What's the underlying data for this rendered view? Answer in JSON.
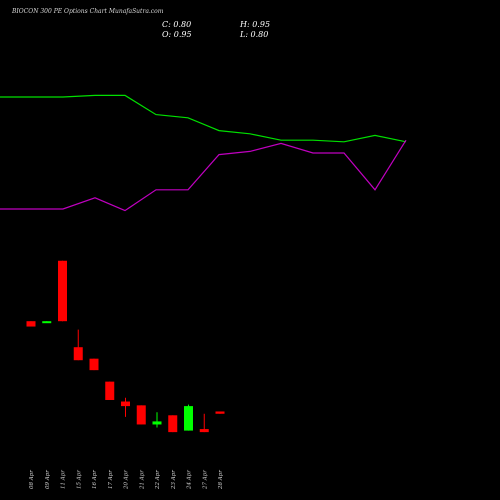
{
  "title": "BIOCON 300 PE Options Chart MunafaSutra.com",
  "ohlc": {
    "close_label": "C: 0.80",
    "high_label": "H: 0.95",
    "open_label": "O: 0.95",
    "low_label": "L: 0.80"
  },
  "colors": {
    "background": "#000000",
    "up": "#00ff00",
    "down": "#ff0000",
    "line_green": "#00e000",
    "line_magenta": "#c000c0",
    "text": "#ffffff"
  },
  "chart_data": {
    "type": "candlestick",
    "categories": [
      "08 Apr",
      "09 Apr",
      "11 Apr",
      "15 Apr",
      "16 Apr",
      "17 Apr",
      "20 Apr",
      "21 Apr",
      "22 Apr",
      "23 Apr",
      "24 Apr",
      "27 Apr",
      "28 Apr"
    ],
    "candles": [
      {
        "open": 6.85,
        "high": 6.85,
        "low": 6.5,
        "close": 6.5
      },
      {
        "open": 6.8,
        "high": 6.85,
        "low": 6.75,
        "close": 6.85
      },
      {
        "open": 10.8,
        "high": 10.8,
        "low": 6.85,
        "close": 6.85
      },
      {
        "open": 5.15,
        "high": 6.3,
        "low": 4.3,
        "close": 4.3
      },
      {
        "open": 4.4,
        "high": 4.4,
        "low": 3.65,
        "close": 3.65
      },
      {
        "open": 2.9,
        "high": 2.9,
        "low": 1.7,
        "close": 1.7
      },
      {
        "open": 1.6,
        "high": 1.85,
        "low": 0.6,
        "close": 1.3
      },
      {
        "open": 1.35,
        "high": 1.35,
        "low": 0.1,
        "close": 0.1
      },
      {
        "open": 0.1,
        "high": 0.9,
        "low": -0.1,
        "close": 0.3
      },
      {
        "open": 0.7,
        "high": 0.7,
        "low": -0.4,
        "close": -0.4
      },
      {
        "open": -0.3,
        "high": 1.4,
        "low": -0.3,
        "close": 1.3
      },
      {
        "open": -0.2,
        "high": 0.8,
        "low": -0.4,
        "close": -0.4
      },
      {
        "open": 0.95,
        "high": 0.95,
        "low": 0.8,
        "close": 0.8
      }
    ],
    "series": [
      {
        "values": [
          100,
          100,
          101,
          101,
          89,
          87,
          79,
          77,
          73,
          73,
          72,
          76,
          72
        ]
      },
      {
        "values": [
          30,
          30,
          37,
          29,
          42,
          42,
          64,
          66,
          71,
          65,
          65,
          42,
          73
        ]
      }
    ]
  }
}
